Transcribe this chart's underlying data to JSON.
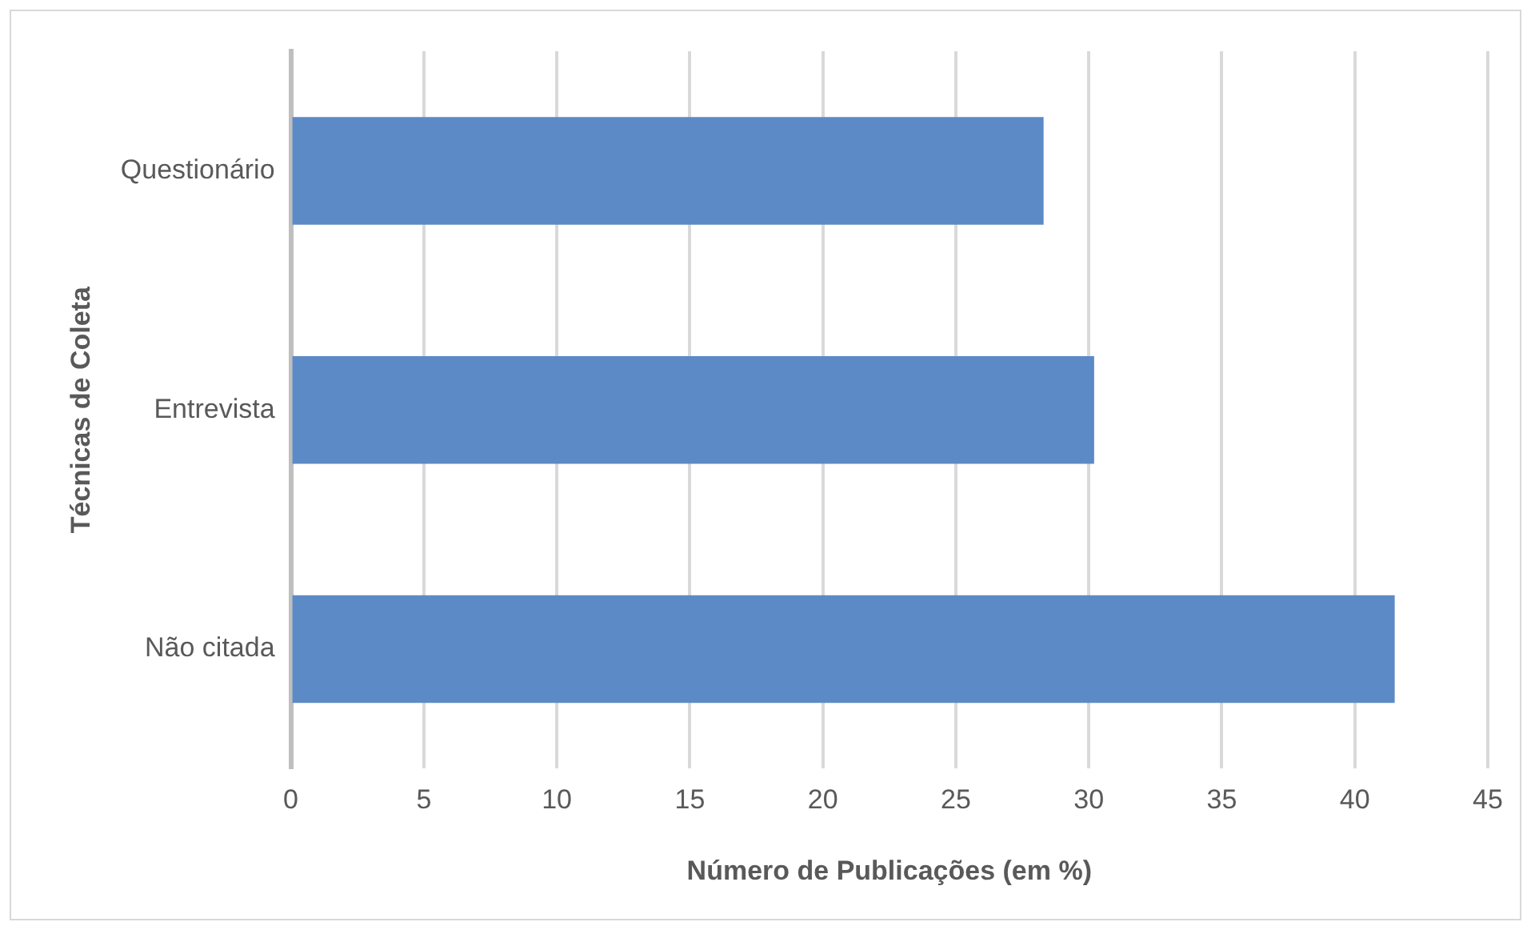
{
  "chart_data": {
    "type": "bar",
    "orientation": "horizontal",
    "xlabel": "Número de Publicações (em %)",
    "ylabel": "Técnicas de Coleta",
    "categories": [
      "Questionário",
      "Entrevista",
      "Não citada"
    ],
    "values": [
      28.3,
      30.2,
      41.5
    ],
    "color": "#5b8ac6",
    "xlim": [
      0,
      45
    ],
    "xticks": [
      0,
      5,
      10,
      15,
      20,
      25,
      30,
      35,
      40,
      45
    ],
    "grid": "x"
  }
}
